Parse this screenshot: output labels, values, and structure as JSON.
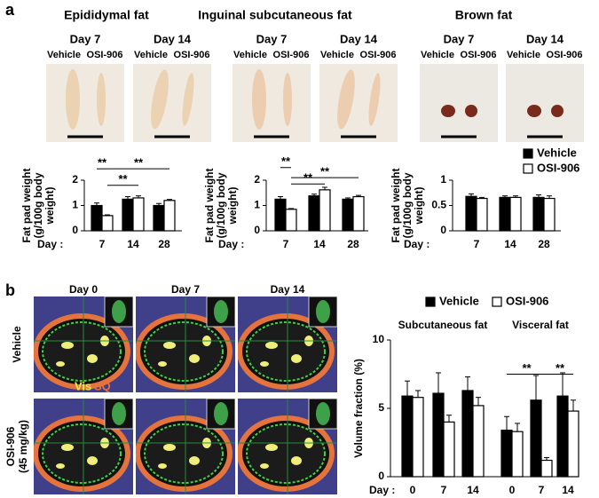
{
  "panel_labels": [
    "a",
    "b"
  ],
  "photos": [
    {
      "title": "Epididymal fat",
      "columns": [
        {
          "day": "Day 7",
          "labels": [
            "Vehicle",
            "OSI-906"
          ]
        },
        {
          "day": "Day 14",
          "labels": [
            "Vehicle",
            "OSI-906"
          ]
        }
      ]
    },
    {
      "title": "Inguinal subcutaneous fat",
      "columns": [
        {
          "day": "Day 7",
          "labels": [
            "Vehicle",
            "OSI-906"
          ]
        },
        {
          "day": "Day 14",
          "labels": [
            "Vehicle",
            "OSI-906"
          ]
        }
      ]
    },
    {
      "title": "Brown fat",
      "columns": [
        {
          "day": "Day 7",
          "labels": [
            "Vehicle",
            "OSI-906"
          ]
        },
        {
          "day": "Day 14",
          "labels": [
            "Vehicle",
            "OSI-906"
          ]
        }
      ]
    }
  ],
  "ct": {
    "days": [
      "Day 0",
      "Day 7",
      "Day 14"
    ],
    "rows": [
      [
        "Vehicle"
      ],
      [
        "OSI-906",
        "(45 mg/kg)"
      ]
    ],
    "legend": [
      "Vis",
      "SQ"
    ]
  },
  "chart_data": [
    {
      "type": "bar",
      "ylabel": [
        "Fat pad weight",
        "(g/100g body",
        "weight)"
      ],
      "xlabel": "Day :",
      "categories": [
        "7",
        "14",
        "28"
      ],
      "ylim": [
        0,
        2
      ],
      "yticks": [
        0,
        1,
        2
      ],
      "series": [
        {
          "color": "#000000",
          "values": [
            1.0,
            1.25,
            1.0
          ],
          "errors": [
            0.1,
            0.1,
            0.08
          ]
        },
        {
          "color": "#ffffff",
          "values": [
            0.6,
            1.3,
            1.2
          ],
          "errors": [
            0.03,
            0.08,
            0.04
          ]
        }
      ],
      "annotations": [
        "**",
        "**",
        "**"
      ]
    },
    {
      "type": "bar",
      "ylabel": [
        "Fat pad weight",
        "(g/100g body",
        "weight)"
      ],
      "xlabel": "Day :",
      "categories": [
        "7",
        "14",
        "28"
      ],
      "ylim": [
        0,
        2
      ],
      "yticks": [
        0,
        1,
        2
      ],
      "series": [
        {
          "color": "#000000",
          "values": [
            1.25,
            1.38,
            1.25
          ],
          "errors": [
            0.1,
            0.07,
            0.05
          ]
        },
        {
          "color": "#ffffff",
          "values": [
            0.85,
            1.62,
            1.35
          ],
          "errors": [
            0.03,
            0.1,
            0.05
          ]
        }
      ],
      "annotations": [
        "**",
        "**",
        "**"
      ]
    },
    {
      "type": "bar",
      "ylabel": [
        "Fat pad weight",
        "(g/100g body",
        "weight)"
      ],
      "xlabel": "Day :",
      "categories": [
        "7",
        "14",
        "28"
      ],
      "ylim": [
        0,
        1
      ],
      "yticks": [
        0,
        0.5,
        1
      ],
      "legend": true,
      "series": [
        {
          "name": "Vehicle",
          "color": "#000000",
          "values": [
            0.68,
            0.66,
            0.66
          ],
          "errors": [
            0.05,
            0.03,
            0.05
          ]
        },
        {
          "name": "OSI-906",
          "color": "#ffffff",
          "values": [
            0.64,
            0.66,
            0.64
          ],
          "errors": [
            0.02,
            0.03,
            0.05
          ]
        }
      ],
      "annotations": []
    },
    {
      "type": "bar",
      "ylabel": [
        "Volume fraction (%)"
      ],
      "xlabel": "Day :",
      "categories": [
        "0",
        "7",
        "14",
        "0",
        "7",
        "14"
      ],
      "groups": [
        "Subcutaneous fat",
        "Visceral fat"
      ],
      "ylim": [
        0,
        10
      ],
      "yticks": [
        0,
        5,
        10
      ],
      "legend": true,
      "series": [
        {
          "name": "Vehicle",
          "color": "#000000",
          "values": [
            5.9,
            6.1,
            6.3,
            3.4,
            5.6,
            5.9
          ],
          "errors": [
            1.1,
            1.5,
            1.0,
            1.0,
            1.8,
            1.7
          ]
        },
        {
          "name": "OSI-906",
          "color": "#ffffff",
          "values": [
            5.8,
            4.0,
            5.2,
            3.3,
            1.2,
            4.8
          ],
          "errors": [
            0.5,
            0.5,
            0.6,
            0.6,
            0.2,
            0.8
          ]
        }
      ],
      "annotations": [
        "**",
        "**"
      ]
    }
  ]
}
